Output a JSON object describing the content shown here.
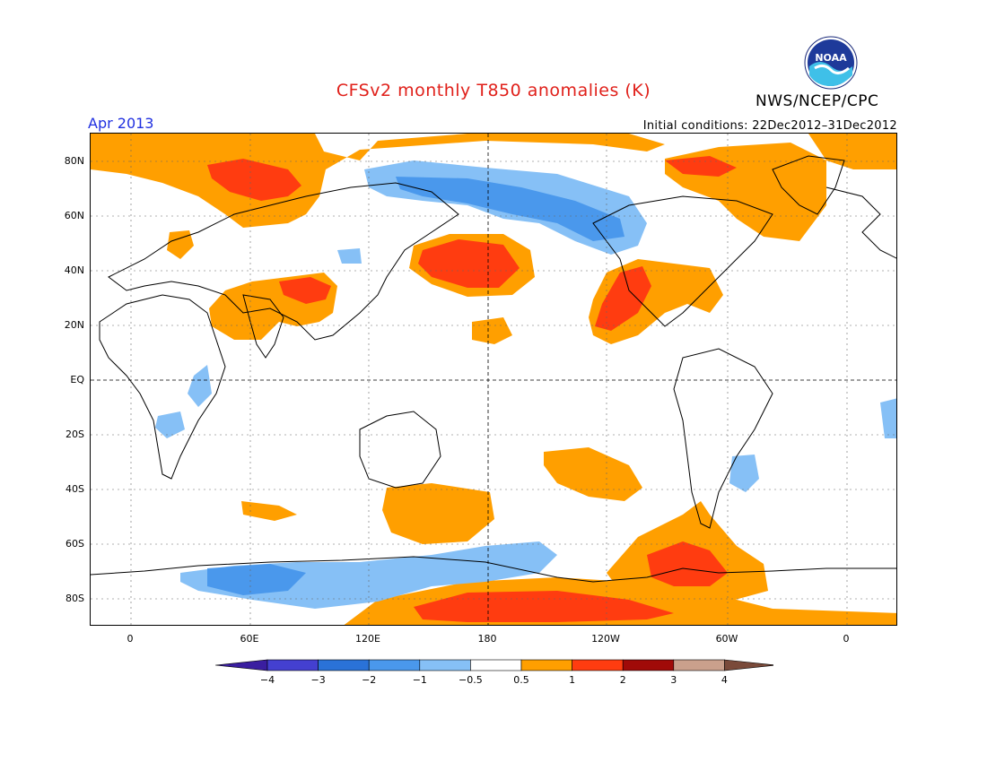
{
  "header": {
    "title": "CFSv2 monthly T850 anomalies (K)",
    "agency": "NWS/NCEP/CPC",
    "valid_month": "Apr 2013",
    "initial_conditions": "Initial conditions: 22Dec2012–31Dec2012",
    "logo_text": "NOAA"
  },
  "map": {
    "lat_labels": [
      "80N",
      "60N",
      "40N",
      "20N",
      "EQ",
      "20S",
      "40S",
      "60S",
      "80S"
    ],
    "lon_labels": [
      "0",
      "60E",
      "120E",
      "180",
      "120W",
      "60W",
      "0"
    ]
  },
  "colorbar": {
    "labels": [
      "−4",
      "−3",
      "−2",
      "−1",
      "−0.5",
      "0.5",
      "1",
      "2",
      "3",
      "4"
    ],
    "colors": [
      "#3a1ea0",
      "#4440d0",
      "#2a72d8",
      "#4a98ec",
      "#86c0f6",
      "#ffffff",
      "#ff9f00",
      "#ff3c10",
      "#a00a08",
      "#caa08c",
      "#7a4a3a"
    ]
  }
}
